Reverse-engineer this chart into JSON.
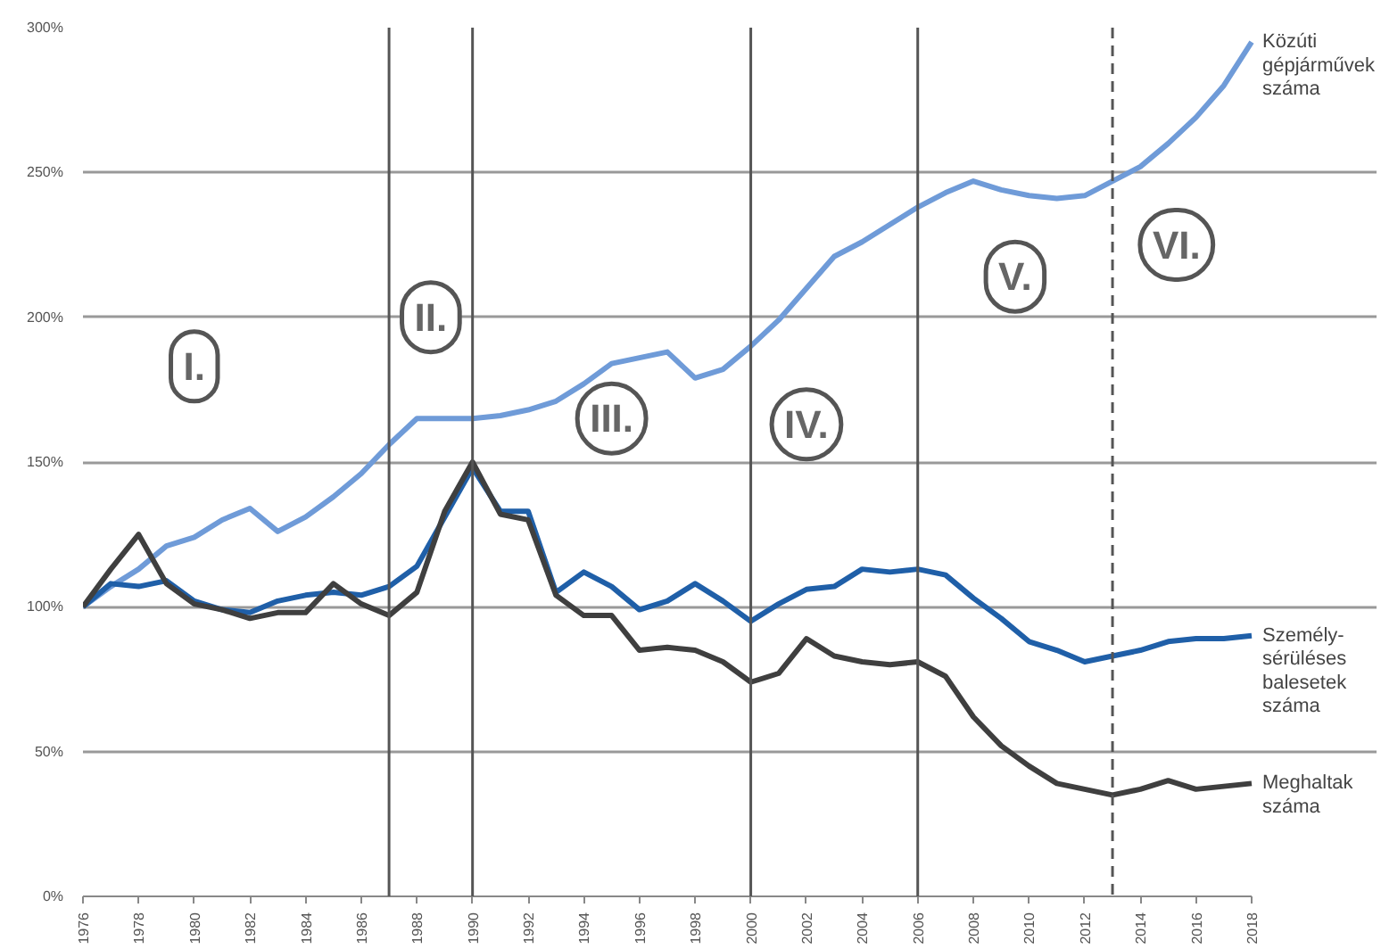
{
  "chart_data": {
    "type": "line",
    "x": [
      1976,
      1977,
      1978,
      1979,
      1980,
      1981,
      1982,
      1983,
      1984,
      1985,
      1986,
      1987,
      1988,
      1989,
      1990,
      1991,
      1992,
      1993,
      1994,
      1995,
      1996,
      1997,
      1998,
      1999,
      2000,
      2001,
      2002,
      2003,
      2004,
      2005,
      2006,
      2007,
      2008,
      2009,
      2010,
      2011,
      2012,
      2013,
      2014,
      2015,
      2016,
      2017,
      2018
    ],
    "series": [
      {
        "name": "Közúti\ngépjárművek\nszáma",
        "color": "#6f9bd8",
        "values": [
          100,
          107,
          113,
          121,
          124,
          130,
          134,
          126,
          131,
          138,
          146,
          156,
          165,
          165,
          165,
          166,
          168,
          171,
          177,
          184,
          186,
          188,
          179,
          182,
          190,
          199,
          210,
          221,
          226,
          232,
          238,
          243,
          247,
          244,
          242,
          241,
          242,
          247,
          252,
          260,
          269,
          280,
          295
        ]
      },
      {
        "name": "Személy-\nsérüléses\nbalesetek\nszáma",
        "color": "#1f5fa8",
        "values": [
          100,
          108,
          107,
          109,
          102,
          99,
          98,
          102,
          104,
          105,
          104,
          107,
          114,
          131,
          148,
          133,
          133,
          105,
          112,
          107,
          99,
          102,
          108,
          102,
          95,
          101,
          106,
          107,
          113,
          112,
          113,
          111,
          103,
          96,
          88,
          85,
          81,
          83,
          85,
          88,
          89,
          89,
          90
        ]
      },
      {
        "name": "Meghaltak\nszáma",
        "color": "#3f3f3f",
        "values": [
          100,
          113,
          125,
          108,
          101,
          99,
          96,
          98,
          98,
          108,
          101,
          97,
          105,
          133,
          150,
          132,
          130,
          104,
          97,
          97,
          85,
          86,
          85,
          81,
          74,
          77,
          89,
          83,
          81,
          80,
          81,
          76,
          62,
          52,
          45,
          39,
          37,
          35,
          37,
          40,
          37,
          38,
          39
        ]
      }
    ],
    "xlim": [
      1976,
      2018
    ],
    "xticks": [
      1976,
      1978,
      1980,
      1982,
      1984,
      1986,
      1988,
      1990,
      1992,
      1994,
      1996,
      1998,
      2000,
      2002,
      2004,
      2006,
      2008,
      2010,
      2012,
      2014,
      2016,
      2018
    ],
    "ylim": [
      0,
      300
    ],
    "yticks": [
      {
        "value": 0,
        "label": "0%"
      },
      {
        "value": 50,
        "label": "50%"
      },
      {
        "value": 100,
        "label": "100%"
      },
      {
        "value": 150,
        "label": "150%"
      },
      {
        "value": 200,
        "label": "200%"
      },
      {
        "value": 250,
        "label": "250%"
      },
      {
        "value": 300,
        "label": "300%"
      }
    ],
    "grid": "y",
    "line_style": "solid",
    "ref_lines": [
      {
        "axis": "x",
        "value": 1987,
        "line_style": "solid"
      },
      {
        "axis": "x",
        "value": 1990,
        "line_style": "solid"
      },
      {
        "axis": "x",
        "value": 2000,
        "line_style": "solid"
      },
      {
        "axis": "x",
        "value": 2006,
        "line_style": "solid"
      },
      {
        "axis": "x",
        "value": 2013,
        "line_style": "dashed"
      }
    ],
    "annotations": [
      {
        "text": "I.",
        "x": 1980,
        "y": 183
      },
      {
        "text": "II.",
        "x": 1988.5,
        "y": 200
      },
      {
        "text": "III.",
        "x": 1995,
        "y": 165
      },
      {
        "text": "IV.",
        "x": 2002,
        "y": 163
      },
      {
        "text": "V.",
        "x": 2009.5,
        "y": 214
      },
      {
        "text": "VI.",
        "x": 2015.3,
        "y": 225
      }
    ]
  }
}
